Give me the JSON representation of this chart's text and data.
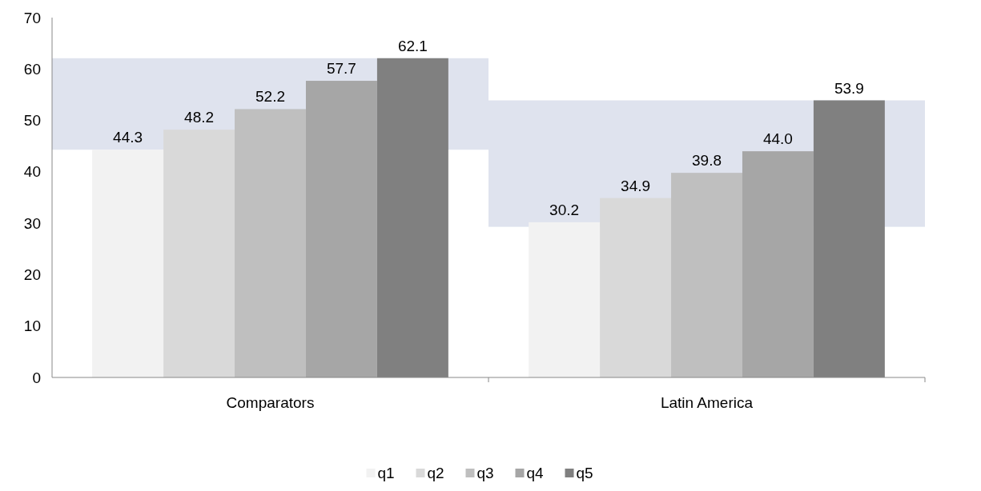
{
  "chart_data": {
    "type": "bar",
    "categories": [
      "Comparators",
      "Latin America"
    ],
    "series": [
      {
        "type": "bar",
        "color": "#dfe3ee",
        "base": [
          44.3,
          29.3
        ],
        "values": [
          17.8,
          24.6
        ]
      },
      {
        "name": "q1",
        "color": "#f2f2f2",
        "values": [
          44.3,
          30.2
        ]
      },
      {
        "name": "q2",
        "color": "#d9d9d9",
        "values": [
          48.2,
          34.9
        ]
      },
      {
        "name": "q3",
        "color": "#bfbfbf",
        "values": [
          52.2,
          39.8
        ]
      },
      {
        "name": "q4",
        "color": "#a6a6a6",
        "values": [
          57.7,
          44.0
        ]
      },
      {
        "name": "q5",
        "color": "#808080",
        "values": [
          62.1,
          53.9
        ]
      }
    ],
    "value_labels": [
      null,
      [
        "44.3",
        "30.2"
      ],
      [
        "48.2",
        "34.9"
      ],
      [
        "52.2",
        "39.8"
      ],
      [
        "57.7",
        "44.0"
      ],
      [
        "62.1",
        "53.9"
      ]
    ],
    "ylim": [
      0,
      70
    ],
    "yticks": [
      0,
      10,
      20,
      30,
      40,
      50,
      60,
      70
    ],
    "legend": "bottom",
    "grid": false
  }
}
